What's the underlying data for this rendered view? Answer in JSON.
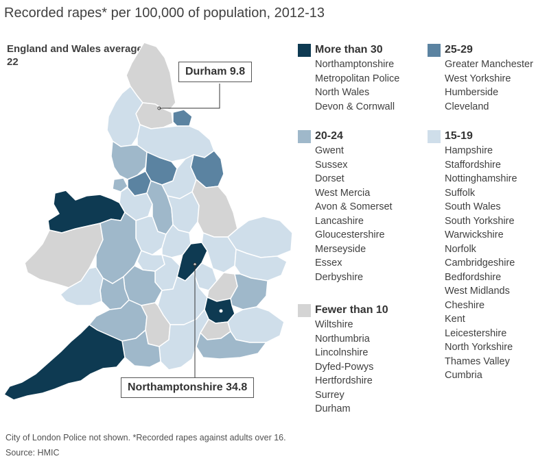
{
  "title": "Recorded rapes* per 100,000 of population, 2012-13",
  "average_label": "England and Wales average 22",
  "colors": {
    "more_than_30": "#0e3a52",
    "25_29": "#5b83a1",
    "20_24": "#9fb8ca",
    "15_19": "#cfdeea",
    "fewer_than_10": "#d4d4d4",
    "border": "#ffffff"
  },
  "callouts": {
    "durham": "Durham 9.8",
    "northamptonshire": "Northamptonshire 34.8"
  },
  "legend": [
    {
      "id": "more_than_30",
      "label": "More than 30",
      "color": "#0e3a52",
      "items": [
        "Northamptonshire",
        "Metropolitan Police",
        "North Wales",
        "Devon & Cornwall"
      ]
    },
    {
      "id": "25_29",
      "label": "25-29",
      "color": "#5b83a1",
      "items": [
        "Greater Manchester",
        "West Yorkshire",
        "Humberside",
        "Cleveland"
      ]
    },
    {
      "id": "20_24",
      "label": "20-24",
      "color": "#9fb8ca",
      "items": [
        "Gwent",
        "Sussex",
        "Dorset",
        "West Mercia",
        "Avon & Somerset",
        "Lancashire",
        "Gloucestershire",
        "Merseyside",
        "Essex",
        "Derbyshire"
      ]
    },
    {
      "id": "15_19",
      "label": "15-19",
      "color": "#cfdeea",
      "items": [
        "Hampshire",
        "Staffordshire",
        "Nottinghamshire",
        "Suffolk",
        "South Wales",
        "South Yorkshire",
        "Warwickshire",
        "Norfolk",
        "Cambridgeshire",
        "Bedfordshire",
        "West Midlands",
        "Cheshire",
        "Kent",
        "Leicestershire",
        "North Yorkshire",
        "Thames Valley",
        "Cumbria"
      ]
    },
    {
      "id": "fewer_than_10",
      "label": "Fewer than 10",
      "color": "#d4d4d4",
      "items": [
        "Wiltshire",
        "Northumbria",
        "Lincolnshire",
        "Dyfed-Powys",
        "Hertfordshire",
        "Surrey",
        "Durham"
      ]
    }
  ],
  "footnote": "City of London Police not shown. *Recorded rapes against adults over 16.",
  "source": "Source: HMIC"
}
